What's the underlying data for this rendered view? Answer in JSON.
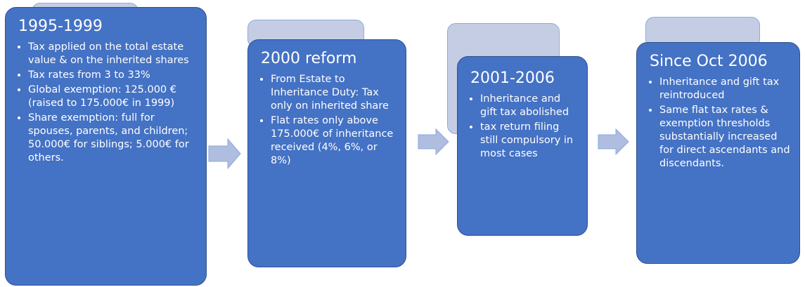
{
  "cards": [
    {
      "title": "1995-1999",
      "bullets": [
        "Tax applied on the total estate value & on the inherited shares",
        "Tax rates from 3 to 33%",
        "Global exemption: 125.000 € (raised to 175.000€ in 1999)",
        "Share exemption: full for spouses, parents, and children; 50.000€ for siblings; 5.000€ for others."
      ]
    },
    {
      "title": "2000 reform",
      "bullets": [
        "From Estate to Inheritance Duty: Tax only on inherited share",
        "Flat rates only above 175.000€ of inheritance received (4%, 6%, or 8%)"
      ]
    },
    {
      "title": "2001-2006",
      "bullets": [
        "Inheritance and gift tax abolished",
        "tax return filing still compulsory in most cases"
      ]
    },
    {
      "title": "Since Oct 2006",
      "bullets": [
        "Inheritance and gift tax reintroduced",
        "Same flat tax rates & exemption thresholds substantially increased for direct ascendants and discendants."
      ]
    }
  ]
}
